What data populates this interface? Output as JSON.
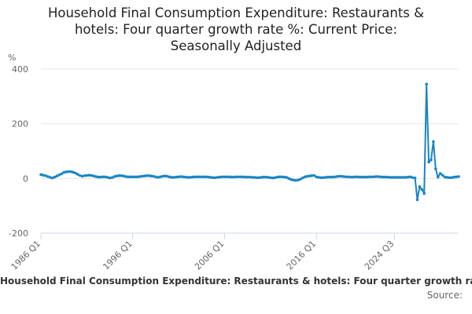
{
  "chart_data": {
    "type": "line",
    "title": "Household Final Consumption Expenditure: Restaurants & hotels: Four quarter growth rate %: Current Price: Seasonally Adjusted",
    "title_lines": [
      "Household Final Consumption Expenditure: Restaurants &",
      "hotels: Four quarter growth rate %: Current Price:",
      "Seasonally Adjusted"
    ],
    "ylabel": "%",
    "xlabel": "",
    "ylim": [
      -200,
      400
    ],
    "y_ticks": [
      "400",
      "200",
      "0",
      "-200"
    ],
    "x_ticks": [
      "1986 Q1",
      "1996 Q1",
      "2006 Q1",
      "2016 Q1",
      "2024 Q3"
    ],
    "x_start": "1986 Q1",
    "x_end": "2024 Q3",
    "series": [
      {
        "name": "Household Final Consumption Expenditure: Restaurants & hotels: Four quarter growth rate %: Current Price: Seasonally Adjusted",
        "color": "#1a85c2",
        "values": [
          14,
          12,
          10,
          7,
          4,
          2,
          5,
          9,
          13,
          17,
          22,
          24,
          25,
          25,
          23,
          20,
          15,
          11,
          8,
          10,
          11,
          12,
          11,
          9,
          7,
          5,
          5,
          6,
          6,
          4,
          2,
          3,
          7,
          9,
          10,
          10,
          9,
          7,
          6,
          6,
          6,
          6,
          6,
          7,
          8,
          9,
          10,
          10,
          9,
          8,
          6,
          4,
          6,
          8,
          9,
          8,
          6,
          4,
          4,
          5,
          6,
          7,
          6,
          5,
          4,
          4,
          5,
          6,
          6,
          6,
          6,
          6,
          6,
          5,
          4,
          3,
          3,
          4,
          5,
          6,
          6,
          6,
          6,
          5,
          5,
          6,
          6,
          6,
          6,
          5,
          5,
          5,
          4,
          4,
          3,
          3,
          4,
          5,
          5,
          4,
          3,
          2,
          3,
          5,
          6,
          6,
          5,
          4,
          0,
          -4,
          -6,
          -7,
          -6,
          -3,
          2,
          6,
          8,
          9,
          10,
          11,
          6,
          4,
          3,
          3,
          4,
          5,
          5,
          5,
          6,
          7,
          8,
          8,
          7,
          6,
          6,
          5,
          5,
          6,
          6,
          5,
          5,
          5,
          5,
          6,
          6,
          6,
          7,
          7,
          6,
          5,
          5,
          5,
          4,
          4,
          4,
          4,
          4,
          4,
          4,
          4,
          5,
          6,
          3,
          2,
          -78,
          -30,
          -40,
          -55,
          345,
          60,
          68,
          135,
          35,
          5,
          18,
          12,
          5,
          4,
          3,
          3,
          5,
          6,
          7
        ]
      }
    ],
    "legend": "Household Final Consumption Expenditure: Restaurants & hotels: Four quarter growth rate %: Current Price: Seasonally Adjusted",
    "source": "Source:"
  }
}
